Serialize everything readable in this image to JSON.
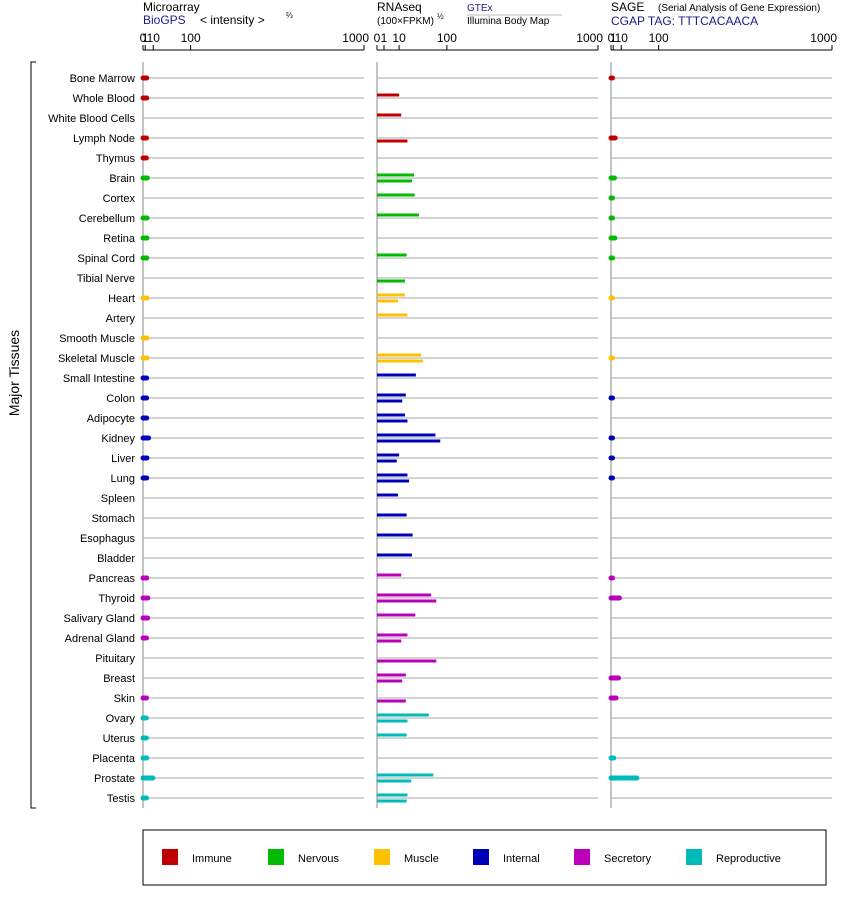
{
  "colors": {
    "Immune": "#c00000",
    "Nervous": "#00bb00",
    "Muscle": "#ffc000",
    "Internal": "#0000bb",
    "Secretory": "#bb00bb",
    "Reproductive": "#00bbbb"
  },
  "headers": {
    "microarray": {
      "title": "Microarray",
      "subtitle": "BioGPS",
      "unit": "< intensity >",
      "unit_sup": "⅔"
    },
    "rnaseq": {
      "title": "RNAseq",
      "unit": "(100×FPKM)",
      "unit_sup": "½",
      "source1": "GTEx",
      "source2": "Illumina Body Map"
    },
    "sage": {
      "title": "SAGE",
      "title_note": "(Serial Analysis of Gene Expression)",
      "subtitle": "CGAP TAG: TTTCACAACA"
    }
  },
  "y_axis_label": "Major Tissues",
  "legend": [
    "Immune",
    "Nervous",
    "Muscle",
    "Internal",
    "Secretory",
    "Reproductive"
  ],
  "chart_data": {
    "type": "bar",
    "axis_ticks": [
      0,
      1,
      10,
      100,
      1000
    ],
    "scale": "power",
    "categories": [
      "Bone Marrow",
      "Whole Blood",
      "White Blood Cells",
      "Lymph Node",
      "Thymus",
      "Brain",
      "Cortex",
      "Cerebellum",
      "Retina",
      "Spinal Cord",
      "Tibial Nerve",
      "Heart",
      "Artery",
      "Smooth Muscle",
      "Skeletal Muscle",
      "Small Intestine",
      "Colon",
      "Adipocyte",
      "Kidney",
      "Liver",
      "Lung",
      "Spleen",
      "Stomach",
      "Esophagus",
      "Bladder",
      "Pancreas",
      "Thyroid",
      "Salivary Gland",
      "Adrenal Gland",
      "Pituitary",
      "Breast",
      "Skin",
      "Ovary",
      "Uterus",
      "Placenta",
      "Prostate",
      "Testis"
    ],
    "systems": [
      "Immune",
      "Immune",
      "Immune",
      "Immune",
      "Immune",
      "Nervous",
      "Nervous",
      "Nervous",
      "Nervous",
      "Nervous",
      "Nervous",
      "Muscle",
      "Muscle",
      "Muscle",
      "Muscle",
      "Internal",
      "Internal",
      "Internal",
      "Internal",
      "Internal",
      "Internal",
      "Internal",
      "Internal",
      "Internal",
      "Internal",
      "Secretory",
      "Secretory",
      "Secretory",
      "Secretory",
      "Secretory",
      "Secretory",
      "Secretory",
      "Reproductive",
      "Reproductive",
      "Reproductive",
      "Reproductive",
      "Reproductive"
    ],
    "microarray": [
      2.2,
      2.2,
      null,
      2.0,
      1.9,
      2.8,
      null,
      2.5,
      2.4,
      2.2,
      null,
      2.4,
      null,
      2.3,
      2.4,
      2.1,
      2.1,
      2.2,
      4.0,
      2.4,
      2.2,
      null,
      null,
      null,
      null,
      2.2,
      3.3,
      3.1,
      2.0,
      null,
      null,
      2.0,
      1.8,
      1.9,
      2.2,
      9.5,
      2.0
    ],
    "rnaseq_gtex": [
      null,
      10,
      12,
      null,
      null,
      28,
      29,
      36,
      null,
      18,
      null,
      16,
      19,
      null,
      40,
      31,
      17,
      16,
      70,
      10,
      19,
      9,
      18,
      26,
      25,
      12,
      60,
      30,
      19,
      null,
      17,
      null,
      55,
      18,
      null,
      65,
      19
    ],
    "rnaseq_ibm": [
      null,
      null,
      null,
      19,
      null,
      25,
      null,
      null,
      null,
      null,
      16,
      9,
      null,
      null,
      43,
      null,
      13,
      19,
      82,
      8,
      21,
      null,
      null,
      null,
      null,
      null,
      72,
      null,
      12,
      72,
      13,
      17,
      19,
      null,
      null,
      24,
      18
    ],
    "sage": [
      0.05,
      null,
      null,
      2.6,
      null,
      2.0,
      0.01,
      0.01,
      2.3,
      0.02,
      null,
      0.003,
      null,
      null,
      0.003,
      null,
      0.02,
      null,
      0.02,
      0.02,
      0.02,
      null,
      null,
      null,
      null,
      0.02,
      7.5,
      null,
      null,
      null,
      6.2,
      3.5,
      null,
      null,
      1.4,
      40,
      null
    ]
  }
}
